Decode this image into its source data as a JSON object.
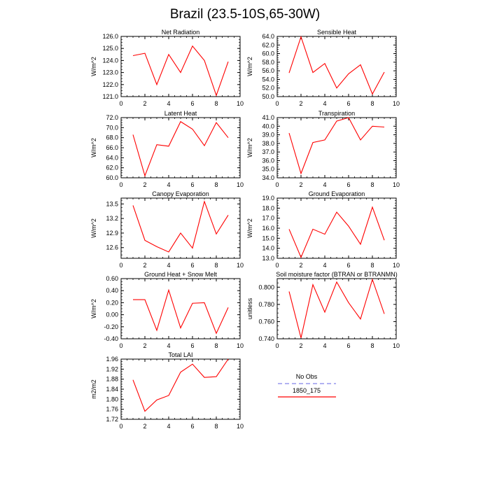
{
  "figure": {
    "title": "Brazil (23.5-10S,65-30W)"
  },
  "legend": {
    "entries": [
      {
        "name": "No Obs",
        "color": "#9999ee",
        "style": "dashed"
      },
      {
        "name": "1850_175",
        "color": "#ff0000",
        "style": "solid"
      }
    ]
  },
  "chart_data": [
    {
      "type": "line",
      "id": "net-radiation",
      "title": "Net Radiation",
      "ylabel": "W/m^2",
      "xlim": [
        0,
        10
      ],
      "ylim": [
        121.0,
        126.0
      ],
      "xticks": [
        0,
        2,
        4,
        6,
        8,
        10
      ],
      "yticks": [
        121.0,
        122.0,
        123.0,
        124.0,
        125.0,
        126.0
      ],
      "ytick_labels": [
        "121.0",
        "122.0",
        "123.0",
        "124.0",
        "125.0",
        "126.0"
      ],
      "x": [
        1,
        2,
        3,
        4,
        5,
        6,
        7,
        8,
        9
      ],
      "series": [
        {
          "values": [
            124.4,
            124.6,
            122.0,
            124.5,
            123.0,
            125.2,
            124.0,
            121.1,
            123.9
          ],
          "color": "#ff0000"
        }
      ]
    },
    {
      "type": "line",
      "id": "sensible-heat",
      "title": "Sensible Heat",
      "ylabel": "W/m^2",
      "xlim": [
        0,
        10
      ],
      "ylim": [
        50.0,
        64.0
      ],
      "xticks": [
        0,
        2,
        4,
        6,
        8,
        10
      ],
      "yticks": [
        50,
        52,
        54,
        56,
        58,
        60,
        62,
        64
      ],
      "ytick_labels": [
        "50.0",
        "52.0",
        "54.0",
        "56.0",
        "58.0",
        "60.0",
        "62.0",
        "64.0"
      ],
      "x": [
        1,
        2,
        3,
        4,
        5,
        6,
        7,
        8,
        9
      ],
      "series": [
        {
          "values": [
            55.5,
            63.9,
            55.6,
            57.7,
            52.0,
            55.3,
            57.4,
            50.6,
            55.7
          ],
          "color": "#ff0000"
        }
      ]
    },
    {
      "type": "line",
      "id": "latent-heat",
      "title": "Latent Heat",
      "ylabel": "W/m^2",
      "xlim": [
        0,
        10
      ],
      "ylim": [
        60.0,
        72.0
      ],
      "xticks": [
        0,
        2,
        4,
        6,
        8,
        10
      ],
      "yticks": [
        60,
        62,
        64,
        66,
        68,
        70,
        72
      ],
      "ytick_labels": [
        "60.0",
        "62.0",
        "64.0",
        "66.0",
        "68.0",
        "70.0",
        "72.0"
      ],
      "x": [
        1,
        2,
        3,
        4,
        5,
        6,
        7,
        8,
        9
      ],
      "series": [
        {
          "values": [
            68.6,
            60.4,
            66.6,
            66.3,
            71.2,
            69.7,
            66.4,
            71.0,
            68.0
          ],
          "color": "#ff0000"
        }
      ]
    },
    {
      "type": "line",
      "id": "transpiration",
      "title": "Transpiration",
      "ylabel": "W/m^2",
      "xlim": [
        0,
        10
      ],
      "ylim": [
        34.0,
        41.0
      ],
      "xticks": [
        0,
        2,
        4,
        6,
        8,
        10
      ],
      "yticks": [
        34,
        35,
        36,
        37,
        38,
        39,
        40,
        41
      ],
      "ytick_labels": [
        "34.0",
        "35.0",
        "36.0",
        "37.0",
        "38.0",
        "39.0",
        "40.0",
        "41.0"
      ],
      "x": [
        1,
        2,
        3,
        4,
        5,
        6,
        7,
        8,
        9
      ],
      "series": [
        {
          "values": [
            39.2,
            34.5,
            38.1,
            38.4,
            40.6,
            41.0,
            38.4,
            40.0,
            39.9
          ],
          "color": "#ff0000"
        }
      ]
    },
    {
      "type": "line",
      "id": "canopy-evaporation",
      "title": "Canopy Evaporation",
      "ylabel": "W/m^2",
      "xlim": [
        0,
        10
      ],
      "ylim": [
        12.38,
        13.62
      ],
      "xticks": [
        0,
        2,
        4,
        6,
        8,
        10
      ],
      "yticks": [
        12.6,
        12.9,
        13.2,
        13.5
      ],
      "ytick_labels": [
        "12.6",
        "12.9",
        "13.2",
        "13.5"
      ],
      "x": [
        1,
        2,
        3,
        4,
        5,
        6,
        7,
        8,
        9
      ],
      "series": [
        {
          "values": [
            13.47,
            12.75,
            12.62,
            12.51,
            12.9,
            12.59,
            13.55,
            12.88,
            13.27
          ],
          "color": "#ff0000"
        }
      ]
    },
    {
      "type": "line",
      "id": "ground-evaporation",
      "title": "Ground Evaporation",
      "ylabel": "W/m^2",
      "xlim": [
        0,
        10
      ],
      "ylim": [
        13.0,
        19.0
      ],
      "xticks": [
        0,
        2,
        4,
        6,
        8,
        10
      ],
      "yticks": [
        13,
        14,
        15,
        16,
        17,
        18,
        19
      ],
      "ytick_labels": [
        "13.0",
        "14.0",
        "15.0",
        "16.0",
        "17.0",
        "18.0",
        "19.0"
      ],
      "x": [
        1,
        2,
        3,
        4,
        5,
        6,
        7,
        8,
        9
      ],
      "series": [
        {
          "values": [
            15.9,
            13.1,
            15.9,
            15.4,
            17.6,
            16.2,
            14.4,
            18.1,
            14.8
          ],
          "color": "#ff0000"
        }
      ]
    },
    {
      "type": "line",
      "id": "ground-heat-snow-melt",
      "title": "Ground Heat + Snow Melt",
      "ylabel": "W/m^2",
      "xlim": [
        0,
        10
      ],
      "ylim": [
        -0.4,
        0.6
      ],
      "xticks": [
        0,
        2,
        4,
        6,
        8,
        10
      ],
      "yticks": [
        -0.4,
        -0.2,
        0.0,
        0.2,
        0.4,
        0.6
      ],
      "ytick_labels": [
        "-0.40",
        "-0.20",
        "0.00",
        "0.20",
        "0.40",
        "0.60"
      ],
      "x": [
        1,
        2,
        3,
        4,
        5,
        6,
        7,
        8,
        9
      ],
      "series": [
        {
          "values": [
            0.25,
            0.25,
            -0.26,
            0.41,
            -0.22,
            0.19,
            0.2,
            -0.31,
            0.12
          ],
          "color": "#ff0000"
        }
      ]
    },
    {
      "type": "line",
      "id": "soil-moisture-factor",
      "title": "Soil moisture factor (BTRAN or BTRANMN)",
      "ylabel": "unitless",
      "xlim": [
        0,
        10
      ],
      "ylim": [
        0.74,
        0.81
      ],
      "xticks": [
        0,
        2,
        4,
        6,
        8,
        10
      ],
      "yticks": [
        0.74,
        0.76,
        0.78,
        0.8
      ],
      "ytick_labels": [
        "0.740",
        "0.760",
        "0.780",
        "0.800"
      ],
      "x": [
        1,
        2,
        3,
        4,
        5,
        6,
        7,
        8,
        9
      ],
      "series": [
        {
          "values": [
            0.795,
            0.741,
            0.803,
            0.771,
            0.806,
            0.782,
            0.763,
            0.809,
            0.769
          ],
          "color": "#ff0000"
        }
      ]
    },
    {
      "type": "line",
      "id": "total-lai",
      "title": "Total LAI",
      "ylabel": "m2/m2",
      "xlim": [
        0,
        10
      ],
      "ylim": [
        1.72,
        1.96
      ],
      "xticks": [
        0,
        2,
        4,
        6,
        8,
        10
      ],
      "yticks": [
        1.72,
        1.76,
        1.8,
        1.84,
        1.88,
        1.92,
        1.96
      ],
      "ytick_labels": [
        "1.72",
        "1.76",
        "1.80",
        "1.84",
        "1.88",
        "1.92",
        "1.96"
      ],
      "x": [
        1,
        2,
        3,
        4,
        5,
        6,
        7,
        8,
        9
      ],
      "series": [
        {
          "values": [
            1.877,
            1.752,
            1.797,
            1.815,
            1.908,
            1.94,
            1.887,
            1.89,
            1.96
          ],
          "color": "#ff0000"
        }
      ]
    }
  ]
}
